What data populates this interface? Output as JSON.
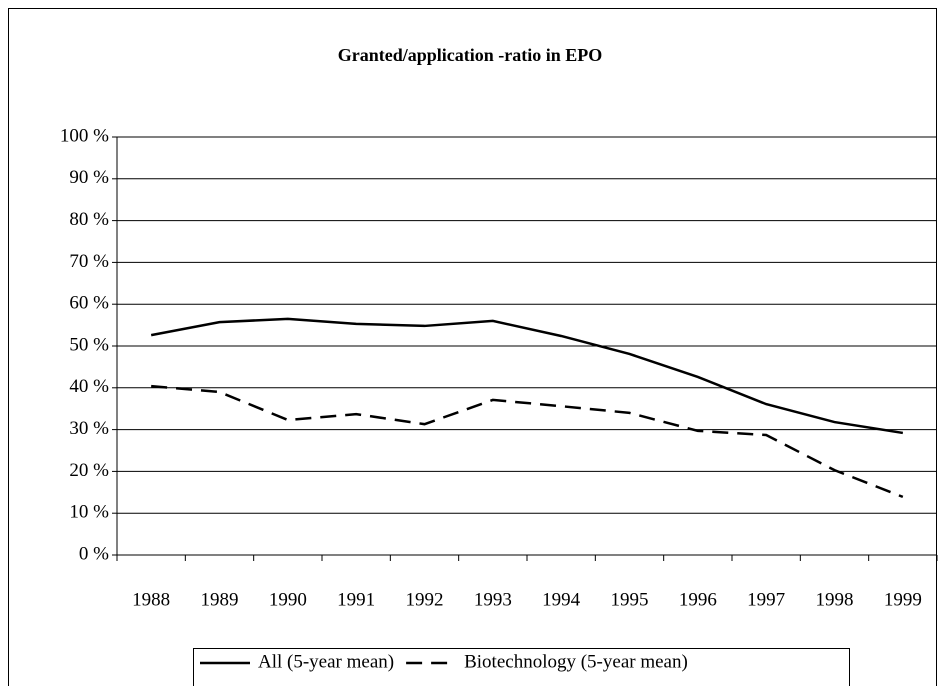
{
  "chart_data": {
    "type": "line",
    "title": "Granted/application -ratio in EPO",
    "categories": [
      "1988",
      "1989",
      "1990",
      "1991",
      "1992",
      "1993",
      "1994",
      "1995",
      "1996",
      "1997",
      "1998",
      "1999"
    ],
    "series": [
      {
        "name": "All (5-year mean)",
        "color": "#000000",
        "linestyle": "solid",
        "values": [
          52.6,
          55.7,
          56.5,
          55.3,
          54.8,
          56.0,
          52.4,
          48.1,
          42.6,
          36.1,
          31.8,
          29.2
        ]
      },
      {
        "name": "Biotechnology (5-year mean)",
        "color": "#000000",
        "linestyle": "dashed",
        "values": [
          40.4,
          39.0,
          32.3,
          33.7,
          31.3,
          37.1,
          35.6,
          34.0,
          29.7,
          28.7,
          20.3,
          13.9
        ]
      }
    ],
    "ylim": [
      0,
      100
    ],
    "yticks": [
      {
        "value": 0,
        "label": "0 %"
      },
      {
        "value": 10,
        "label": "10 %"
      },
      {
        "value": 20,
        "label": "20 %"
      },
      {
        "value": 30,
        "label": "30 %"
      },
      {
        "value": 40,
        "label": "40 %"
      },
      {
        "value": 50,
        "label": "50 %"
      },
      {
        "value": 60,
        "label": "60 %"
      },
      {
        "value": 70,
        "label": "70 %"
      },
      {
        "value": 80,
        "label": "80 %"
      },
      {
        "value": 90,
        "label": "90 %"
      },
      {
        "value": 100,
        "label": "100 %"
      }
    ],
    "grid": true,
    "legend": "bottom"
  }
}
